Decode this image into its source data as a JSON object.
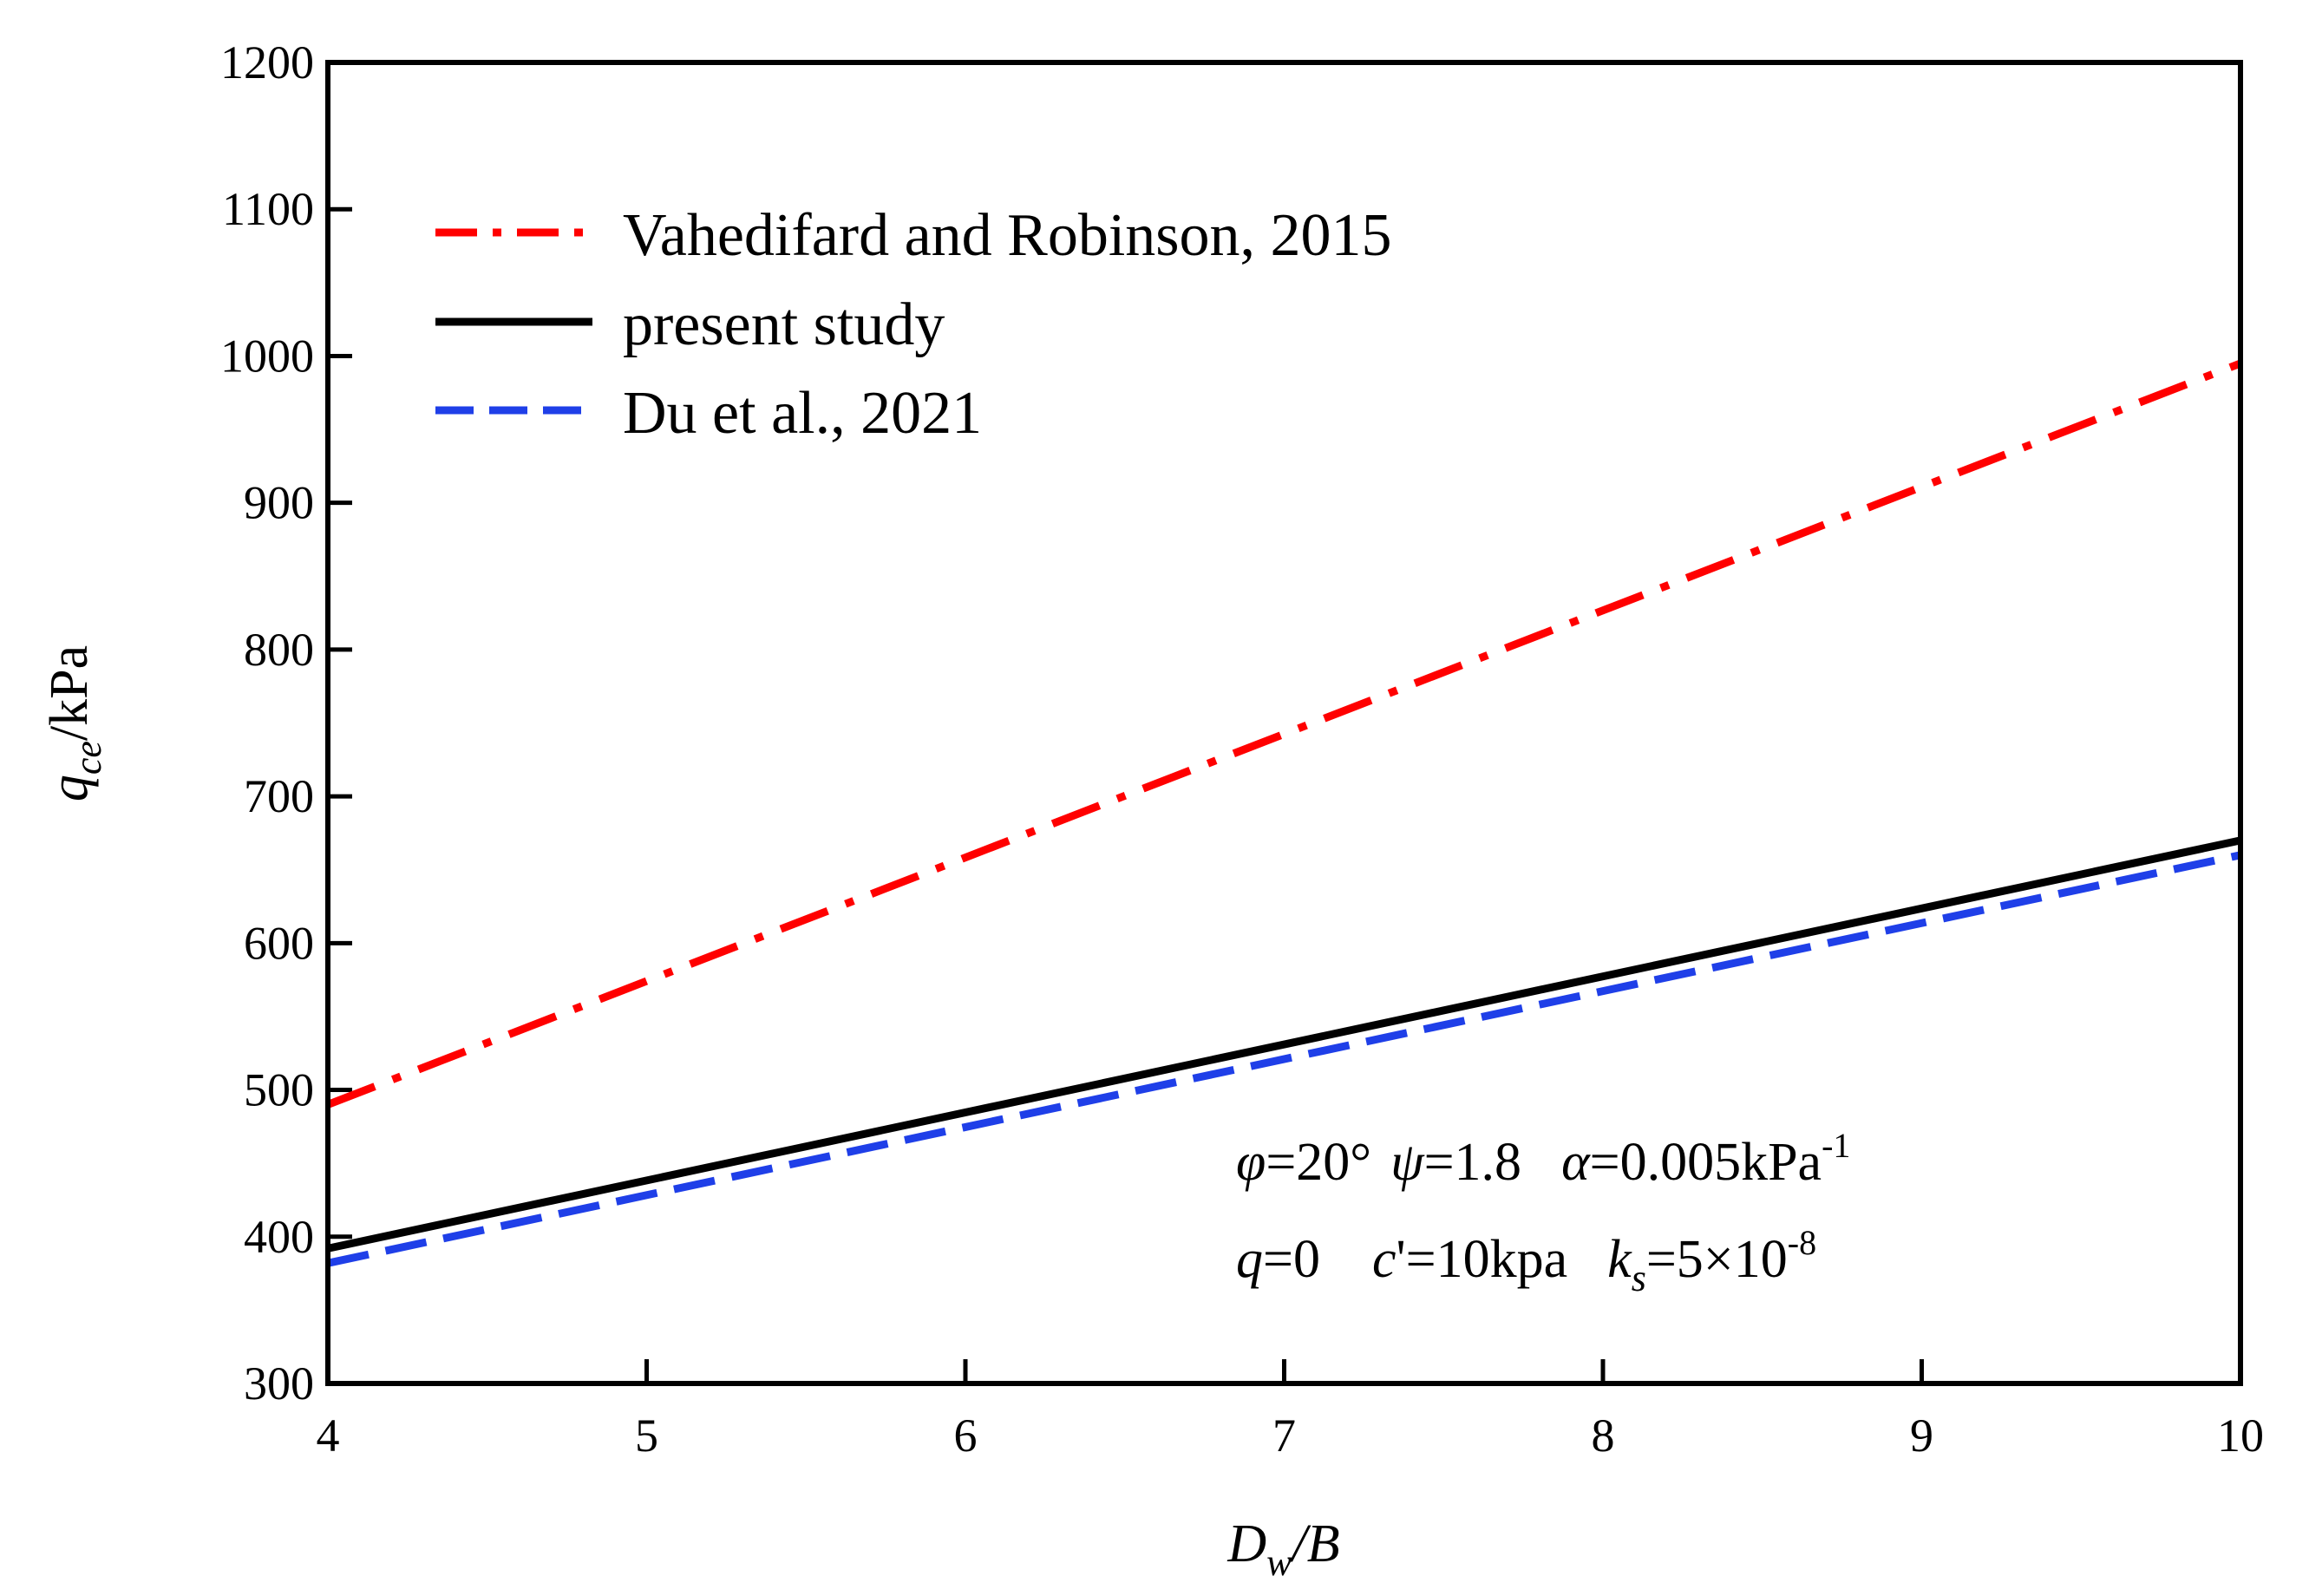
{
  "chart_data": {
    "type": "line",
    "x_axis": {
      "label_main": "D",
      "label_sub": "w",
      "label_rest": "/B",
      "range": [
        4,
        10
      ],
      "ticks": [
        4,
        5,
        6,
        7,
        8,
        9,
        10
      ],
      "tick_labels": [
        "4",
        "5",
        "6",
        "7",
        "8",
        "9",
        "10"
      ]
    },
    "y_axis": {
      "label_main": "q",
      "label_sub": "ce",
      "label_rest": "/kPa",
      "range": [
        300,
        1200
      ],
      "ticks": [
        300,
        400,
        500,
        600,
        700,
        800,
        900,
        1000,
        1100,
        1200
      ],
      "tick_labels": [
        "300",
        "400",
        "500",
        "600",
        "700",
        "800",
        "900",
        "1000",
        "1100",
        "1200"
      ]
    },
    "grid": false,
    "legend_position": "top-left",
    "series": [
      {
        "name": "Vahedifard and Robinson, 2015",
        "color": "#ff0000",
        "style": "dash-dot",
        "x": [
          4,
          10
        ],
        "y": [
          490,
          995
        ]
      },
      {
        "name": "present study",
        "color": "#000000",
        "style": "solid",
        "x": [
          4,
          10
        ],
        "y": [
          392,
          670
        ]
      },
      {
        "name": "Du et al., 2021",
        "color": "#1f3fe8",
        "style": "dashed",
        "x": [
          4,
          10
        ],
        "y": [
          382,
          660
        ]
      }
    ],
    "annotations": {
      "line1": {
        "phi_sym": "φ",
        "phi_val": "=20°",
        "psi_sym": "ψ",
        "psi_val": "=1.8",
        "alpha_sym": "α",
        "alpha_val": "=0.005kPa",
        "alpha_exp": "-1"
      },
      "line2": {
        "q_sym": "q",
        "q_val": "=0",
        "c_sym": "c",
        "c_val": "'=10kpa",
        "k_sym": "k",
        "k_sub": "s",
        "k_val": "=5×10",
        "k_exp": "-8"
      }
    }
  }
}
